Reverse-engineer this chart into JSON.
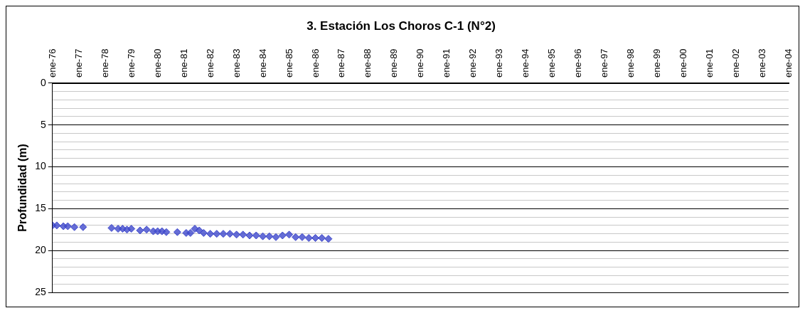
{
  "chart_data": {
    "type": "scatter",
    "title": "3. Estación Los Choros C-1 (N°2)",
    "ylabel": "Profundidad (m)",
    "x": [
      "1976-01",
      "1976-03",
      "1976-06",
      "1976-08",
      "1976-11",
      "1977-03",
      "1978-04",
      "1978-07",
      "1978-09",
      "1978-11",
      "1979-01",
      "1979-05",
      "1979-08",
      "1979-11",
      "1980-01",
      "1980-03",
      "1980-05",
      "1980-10",
      "1981-02",
      "1981-04",
      "1981-06",
      "1981-08",
      "1981-10",
      "1982-01",
      "1982-04",
      "1982-07",
      "1982-10",
      "1983-01",
      "1983-04",
      "1983-07",
      "1983-10",
      "1984-01",
      "1984-04",
      "1984-07",
      "1984-10",
      "1985-01",
      "1985-04",
      "1985-07",
      "1985-10",
      "1986-01",
      "1986-04",
      "1986-07"
    ],
    "series": [
      {
        "color": "#3f48cc",
        "values": [
          17.0,
          17.0,
          17.1,
          17.1,
          17.2,
          17.2,
          17.3,
          17.4,
          17.4,
          17.5,
          17.4,
          17.6,
          17.5,
          17.7,
          17.7,
          17.7,
          17.8,
          17.8,
          17.9,
          17.9,
          17.4,
          17.6,
          17.9,
          18.0,
          18.0,
          18.0,
          18.0,
          18.1,
          18.1,
          18.2,
          18.2,
          18.3,
          18.3,
          18.4,
          18.2,
          18.1,
          18.4,
          18.4,
          18.5,
          18.5,
          18.5,
          18.6
        ]
      }
    ],
    "marker": "diamond",
    "grid": "y",
    "legend": false,
    "xlim": [
      "1976-01",
      "2004-01"
    ],
    "xticks": [
      {
        "value": "1976-01",
        "label": "ene-76"
      },
      {
        "value": "1977-01",
        "label": "ene-77"
      },
      {
        "value": "1978-01",
        "label": "ene-78"
      },
      {
        "value": "1979-01",
        "label": "ene-79"
      },
      {
        "value": "1980-01",
        "label": "ene-80"
      },
      {
        "value": "1981-01",
        "label": "ene-81"
      },
      {
        "value": "1982-01",
        "label": "ene-82"
      },
      {
        "value": "1983-01",
        "label": "ene-83"
      },
      {
        "value": "1984-01",
        "label": "ene-84"
      },
      {
        "value": "1985-01",
        "label": "ene-85"
      },
      {
        "value": "1986-01",
        "label": "ene-86"
      },
      {
        "value": "1987-01",
        "label": "ene-87"
      },
      {
        "value": "1988-01",
        "label": "ene-88"
      },
      {
        "value": "1989-01",
        "label": "ene-89"
      },
      {
        "value": "1990-01",
        "label": "ene-90"
      },
      {
        "value": "1991-01",
        "label": "ene-91"
      },
      {
        "value": "1992-01",
        "label": "ene-92"
      },
      {
        "value": "1993-01",
        "label": "ene-93"
      },
      {
        "value": "1994-01",
        "label": "ene-94"
      },
      {
        "value": "1995-01",
        "label": "ene-95"
      },
      {
        "value": "1996-01",
        "label": "ene-96"
      },
      {
        "value": "1997-01",
        "label": "ene-97"
      },
      {
        "value": "1998-01",
        "label": "ene-98"
      },
      {
        "value": "1999-01",
        "label": "ene-99"
      },
      {
        "value": "2000-01",
        "label": "ene-00"
      },
      {
        "value": "2001-01",
        "label": "ene-01"
      },
      {
        "value": "2002-01",
        "label": "ene-02"
      },
      {
        "value": "2003-01",
        "label": "ene-03"
      },
      {
        "value": "2004-01",
        "label": "ene-04"
      }
    ],
    "ylim": [
      25,
      0
    ],
    "yticks": [
      0,
      {
        "value": 1,
        "label": null
      },
      {
        "value": 2,
        "label": null
      },
      {
        "value": 3,
        "label": null
      },
      {
        "value": 4,
        "label": null
      },
      5,
      {
        "value": 6,
        "label": null
      },
      {
        "value": 7,
        "label": null
      },
      {
        "value": 8,
        "label": null
      },
      {
        "value": 9,
        "label": null
      },
      10,
      {
        "value": 11,
        "label": null
      },
      {
        "value": 12,
        "label": null
      },
      {
        "value": 13,
        "label": null
      },
      {
        "value": 14,
        "label": null
      },
      15,
      {
        "value": 16,
        "label": null
      },
      {
        "value": 17,
        "label": null
      },
      {
        "value": 18,
        "label": null
      },
      {
        "value": 19,
        "label": null
      },
      20,
      {
        "value": 21,
        "label": null
      },
      {
        "value": 22,
        "label": null
      },
      {
        "value": 23,
        "label": null
      },
      {
        "value": 24,
        "label": null
      },
      25
    ]
  }
}
